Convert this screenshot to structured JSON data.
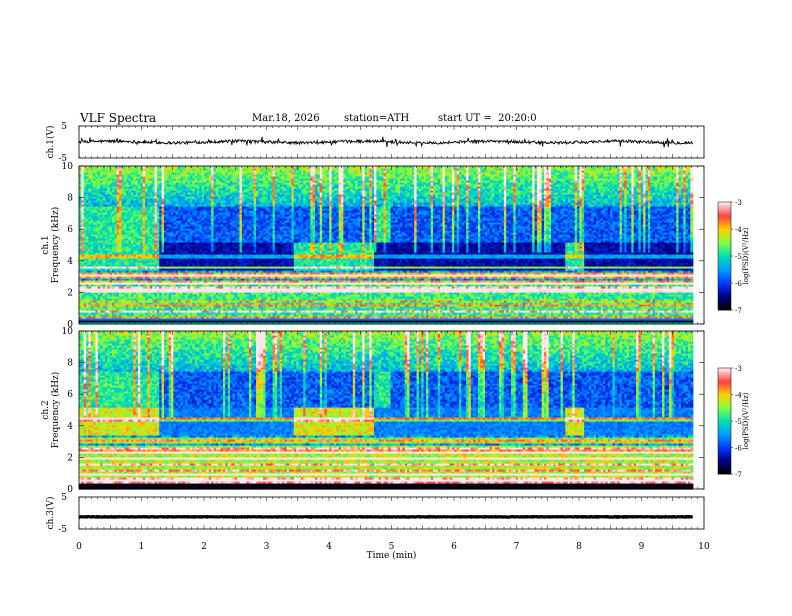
{
  "header": {
    "title": "VLF Spectra",
    "date": "Mar.18, 2026",
    "station": "station=ATH",
    "start_ut": "start UT =  20:20:0"
  },
  "colors": {
    "frame": "#000000",
    "colormap": [
      "#ffe8e8",
      "#ff4040",
      "#ffd000",
      "#80ff40",
      "#00e0b0",
      "#00a0ff",
      "#0040ff",
      "#000090",
      "#000000"
    ]
  },
  "chart_data": [
    {
      "type": "line",
      "panel": "ch1-waveform",
      "ylabel": "ch.1(V)",
      "ylim": [
        -5,
        5
      ],
      "yticks": [
        "5",
        "-5"
      ],
      "xlim": [
        0,
        10
      ],
      "description_values": {
        "baseline_v": 0,
        "typical_range_v": [
          -1.5,
          1.5
        ]
      }
    },
    {
      "type": "heatmap",
      "panel": "ch1-spectrogram",
      "ylabel_channel": "ch.1",
      "ylabel": "Frequency (kHz)",
      "ylim": [
        0,
        10
      ],
      "yticks": [
        "0",
        "2",
        "4",
        "6",
        "8",
        "10"
      ],
      "xlim": [
        0,
        10
      ],
      "colorbar": {
        "label": "log(PSD)(V²/Hz)",
        "range": [
          -7,
          -3
        ],
        "ticks": [
          "-3",
          "-4",
          "-5",
          "-6",
          "-7"
        ]
      },
      "quiet_band_segments_min": [
        [
          1.28,
          3.42
        ],
        [
          4.72,
          7.78
        ],
        [
          8.1,
          9.82
        ]
      ]
    },
    {
      "type": "heatmap",
      "panel": "ch2-spectrogram",
      "ylabel_channel": "ch.2",
      "ylabel": "Frequency (kHz)",
      "ylim": [
        0,
        10
      ],
      "yticks": [
        "0",
        "2",
        "4",
        "6",
        "8",
        "10"
      ],
      "xlim": [
        0,
        10
      ],
      "colorbar": {
        "label": "log(PSD)(V²/Hz)",
        "range": [
          -7,
          -3
        ],
        "ticks": [
          "-3",
          "-4",
          "-5",
          "-6",
          "-7"
        ]
      },
      "quiet_band_segments_min": [
        [
          1.28,
          3.42
        ],
        [
          4.72,
          7.78
        ],
        [
          8.1,
          9.82
        ]
      ]
    },
    {
      "type": "line",
      "panel": "ch3-waveform",
      "ylabel": "ch.3(V)",
      "ylim": [
        -5,
        5
      ],
      "yticks": [
        "5",
        "-5"
      ],
      "xlim": [
        0,
        10
      ],
      "xlabel": "Time (min)",
      "xticks": [
        "0",
        "1",
        "2",
        "3",
        "4",
        "5",
        "6",
        "7",
        "8",
        "9",
        "10"
      ],
      "description_values": {
        "constant_level_v": -1.2
      }
    }
  ]
}
